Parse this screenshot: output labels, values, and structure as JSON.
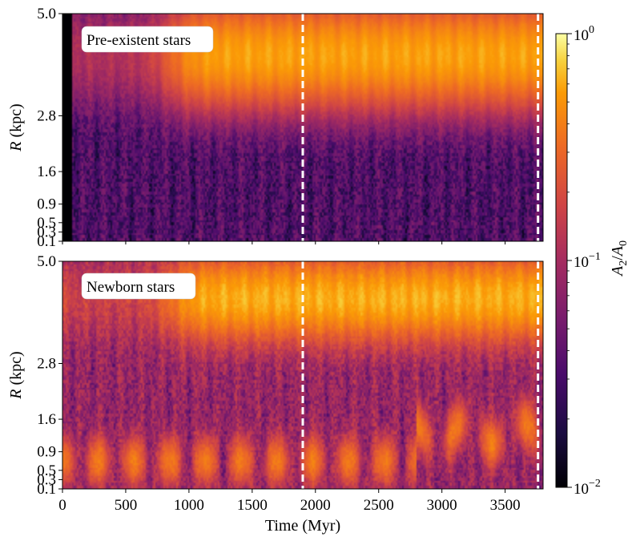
{
  "chart_data": {
    "type": "heatmap",
    "colormap": "inferno",
    "log_scale": true,
    "x": {
      "label": "Time (Myr)",
      "range": [
        0,
        3800
      ],
      "ticks": [
        0,
        500,
        1000,
        1500,
        2000,
        2500,
        3000,
        3500
      ],
      "tick_labels": [
        "0",
        "500",
        "1000",
        "1500",
        "2000",
        "2500",
        "3000",
        "3500"
      ]
    },
    "y": {
      "label_italic": "R",
      "label_rest": " (kpc)",
      "range": [
        0.1,
        5.0
      ],
      "ticks": [
        0.1,
        0.3,
        0.5,
        0.9,
        1.6,
        2.8,
        5.0
      ],
      "tick_labels": [
        "0.1",
        "0.3",
        "0.5",
        "0.9",
        "1.6",
        "2.8",
        "5.0"
      ]
    },
    "colorbar": {
      "label": "A2/A0",
      "label_a": "A",
      "label_a_sub": "2",
      "label_slash": "/",
      "label_b": "A",
      "label_b_sub": "0",
      "range": [
        0.01,
        1
      ],
      "ticks": [
        {
          "value": 1,
          "base": "10",
          "exp": "0"
        },
        {
          "value": 0.1,
          "base": "10",
          "exp": "−1"
        },
        {
          "value": 0.01,
          "base": "10",
          "exp": "−2"
        }
      ]
    },
    "vlines": [
      1900,
      3760
    ],
    "panels": [
      {
        "label": "Pre-existent stars",
        "bar_band": {
          "r_low": 2.9,
          "r_high": 5.0,
          "center": 4.1,
          "t_start": 900,
          "peak": 0.6
        },
        "inner_band": null,
        "inner_level": 0.05,
        "early_black_until": 80
      },
      {
        "label": "Newborn stars",
        "bar_band": {
          "r_low": 3.3,
          "r_high": 5.0,
          "center": 4.2,
          "t_start": 900,
          "peak": 0.6
        },
        "inner_band": {
          "center_early": 0.7,
          "center_late": 1.3,
          "t_switch": 2800,
          "peak": 0.3
        },
        "inner_level": 0.12,
        "early_black_until": 0
      }
    ]
  }
}
